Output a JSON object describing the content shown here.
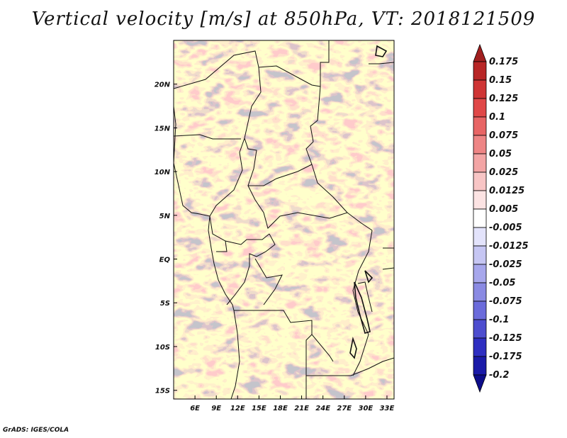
{
  "title": "Vertical velocity [m/s] at 850hPa, VT: 2018121509",
  "footer": "GrADS: IGES/COLA",
  "map": {
    "lon_range": [
      3,
      34
    ],
    "lat_range": [
      -16,
      25
    ],
    "lat_ticks": [
      {
        "value": 20,
        "label": "20N"
      },
      {
        "value": 15,
        "label": "15N"
      },
      {
        "value": 10,
        "label": "10N"
      },
      {
        "value": 5,
        "label": "5N"
      },
      {
        "value": 0,
        "label": "EQ"
      },
      {
        "value": -5,
        "label": "5S"
      },
      {
        "value": -10,
        "label": "10S"
      },
      {
        "value": -15,
        "label": "15S"
      }
    ],
    "lon_ticks": [
      {
        "value": 6,
        "label": "6E"
      },
      {
        "value": 9,
        "label": "9E"
      },
      {
        "value": 12,
        "label": "12E"
      },
      {
        "value": 15,
        "label": "15E"
      },
      {
        "value": 18,
        "label": "18E"
      },
      {
        "value": 21,
        "label": "21E"
      },
      {
        "value": 24,
        "label": "24E"
      },
      {
        "value": 27,
        "label": "27E"
      },
      {
        "value": 30,
        "label": "30E"
      },
      {
        "value": 33,
        "label": "33E"
      }
    ]
  },
  "colorbar": {
    "labels": [
      "0.175",
      "0.15",
      "0.125",
      "0.1",
      "0.075",
      "0.05",
      "0.025",
      "0.0125",
      "0.005",
      "-0.005",
      "-0.0125",
      "-0.025",
      "-0.05",
      "-0.075",
      "-0.1",
      "-0.125",
      "-0.175",
      "-0.2"
    ],
    "colors": [
      "#a11f1f",
      "#b82626",
      "#cf3535",
      "#e04848",
      "#e86565",
      "#ee8585",
      "#f3a5a5",
      "#f8c5c5",
      "#fce3e3",
      "#ffffff",
      "#e3e3fb",
      "#c6c6f3",
      "#a7a7ec",
      "#8a8ae3",
      "#6b6bdb",
      "#4d4dcf",
      "#2e2ec1",
      "#1a1aa8",
      "#0d0d8a"
    ]
  }
}
